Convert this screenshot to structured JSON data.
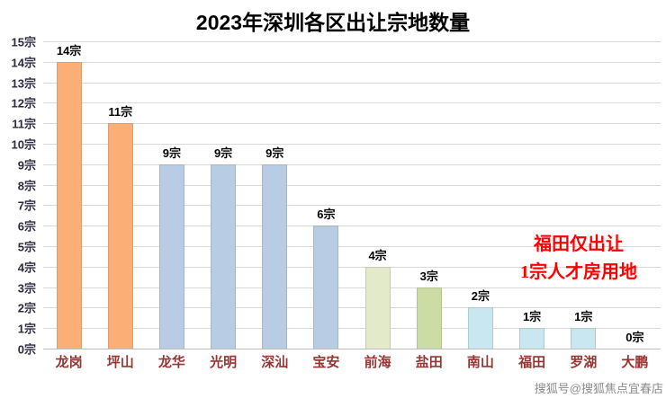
{
  "title": "2023年深圳各区出让宗地数量",
  "annotation": {
    "line1": "福田仅出让",
    "line2": "1宗人才房用地",
    "color": "#FF0000"
  },
  "watermark": "搜狐号@搜狐焦点宜春店",
  "chart_data": {
    "type": "bar",
    "title": "2023年深圳各区出让宗地数量",
    "categories": [
      "龙岗",
      "坪山",
      "龙华",
      "光明",
      "深汕",
      "宝安",
      "前海",
      "盐田",
      "南山",
      "福田",
      "罗湖",
      "大鹏"
    ],
    "values": [
      14,
      11,
      9,
      9,
      9,
      6,
      4,
      3,
      2,
      1,
      1,
      0
    ],
    "data_labels": [
      "14宗",
      "11宗",
      "9宗",
      "9宗",
      "9宗",
      "6宗",
      "4宗",
      "3宗",
      "2宗",
      "1宗",
      "1宗",
      "0宗"
    ],
    "bar_colors": [
      "#FBAE76",
      "#FBAE76",
      "#B8CCE4",
      "#B8CCE4",
      "#B8CCE4",
      "#B8CCE4",
      "#E3EACA",
      "#CBDCA4",
      "#C9E7F0",
      "#C9E7F0",
      "#C9E7F0",
      "#C9E7F0"
    ],
    "xlabel": "",
    "ylabel": "",
    "ylim": [
      0,
      15
    ],
    "ytick_labels": [
      "0宗",
      "1宗",
      "2宗",
      "3宗",
      "4宗",
      "5宗",
      "6宗",
      "7宗",
      "8宗",
      "9宗",
      "10宗",
      "11宗",
      "12宗",
      "13宗",
      "14宗",
      "15宗"
    ],
    "grid": true,
    "legend": "none"
  }
}
